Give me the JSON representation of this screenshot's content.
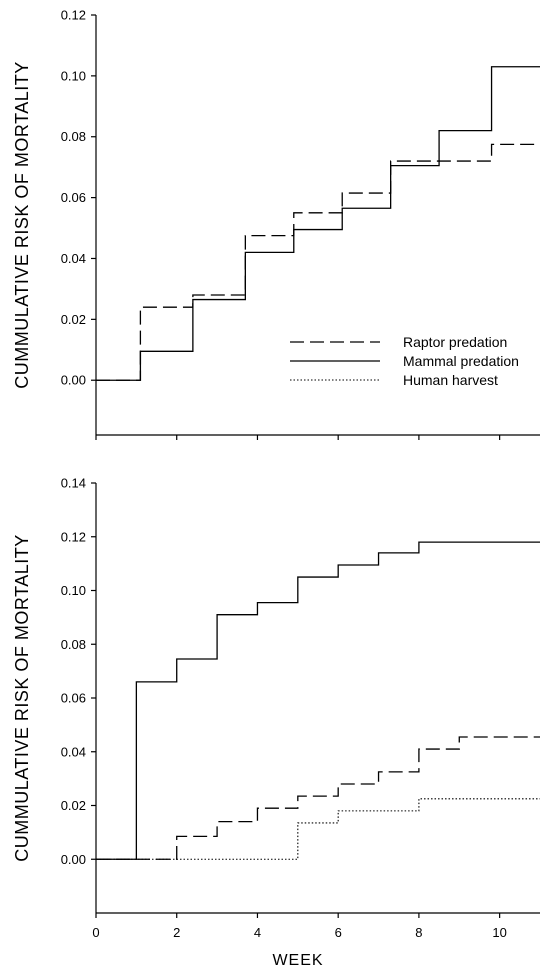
{
  "chart_data": [
    {
      "type": "line",
      "step": true,
      "title": "",
      "xlabel": "",
      "ylabel": "CUMMULATIVE RISK OF MORTALITY",
      "xlim": [
        0,
        11
      ],
      "ylim": [
        -0.018,
        0.12
      ],
      "yticks": [
        0.0,
        0.02,
        0.04,
        0.06,
        0.08,
        0.1,
        0.12
      ],
      "ytick_labels": [
        "0.00",
        "0.02",
        "0.04",
        "0.06",
        "0.08",
        "0.10",
        "0.12"
      ],
      "xticks": [
        0,
        2,
        4,
        6,
        8,
        10
      ],
      "xtick_labels": [],
      "grid": false,
      "legend": "center-right",
      "series": [
        {
          "name": "Raptor predation",
          "style": "dashed",
          "x": [
            0,
            1.1,
            2.4,
            3.7,
            4.9,
            6.1,
            7.3,
            9.8,
            11
          ],
          "y": [
            0,
            0.024,
            0.028,
            0.0475,
            0.055,
            0.0615,
            0.072,
            0.0775,
            0.0775
          ]
        },
        {
          "name": "Mammal predation",
          "style": "solid",
          "x": [
            0,
            1.1,
            2.4,
            3.7,
            4.9,
            6.1,
            7.3,
            8.5,
            9.8,
            11
          ],
          "y": [
            0,
            0.0095,
            0.0265,
            0.042,
            0.0495,
            0.0565,
            0.0705,
            0.082,
            0.103,
            0.103
          ]
        },
        {
          "name": "Human harvest",
          "style": "dotted",
          "x": [],
          "y": []
        }
      ]
    },
    {
      "type": "line",
      "step": true,
      "title": "",
      "xlabel": "WEEK",
      "ylabel": "CUMMULATIVE RISK OF MORTALITY",
      "xlim": [
        0,
        11
      ],
      "ylim": [
        -0.02,
        0.14
      ],
      "yticks": [
        0.0,
        0.02,
        0.04,
        0.06,
        0.08,
        0.1,
        0.12,
        0.14
      ],
      "ytick_labels": [
        "0.00",
        "0.02",
        "0.04",
        "0.06",
        "0.08",
        "0.10",
        "0.12",
        "0.14"
      ],
      "xticks": [
        0,
        2,
        4,
        6,
        8,
        10
      ],
      "xtick_labels": [
        "0",
        "2",
        "4",
        "6",
        "8",
        "10"
      ],
      "grid": false,
      "series": [
        {
          "name": "Raptor predation",
          "style": "dashed",
          "x": [
            0,
            2,
            3,
            4,
            5,
            6,
            7,
            8,
            9,
            11
          ],
          "y": [
            0,
            0.0085,
            0.014,
            0.019,
            0.0235,
            0.028,
            0.0325,
            0.041,
            0.0455,
            0.0455
          ]
        },
        {
          "name": "Mammal predation",
          "style": "solid",
          "x": [
            0,
            1,
            2,
            3,
            4,
            5,
            6,
            7,
            8,
            11
          ],
          "y": [
            0,
            0.066,
            0.0745,
            0.091,
            0.0955,
            0.105,
            0.1095,
            0.114,
            0.118,
            0.118
          ]
        },
        {
          "name": "Human harvest",
          "style": "dotted",
          "x": [
            0,
            5,
            6,
            8,
            11
          ],
          "y": [
            0,
            0.0135,
            0.018,
            0.0225,
            0.0225
          ]
        }
      ]
    }
  ]
}
